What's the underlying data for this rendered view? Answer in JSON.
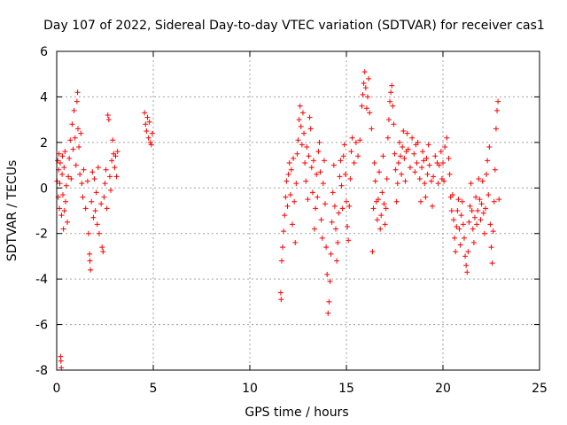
{
  "chart_data": {
    "type": "scatter",
    "title": "Day 107 of 2022, Sidereal Day-to-day VTEC variation (SDTVAR) for receiver cas1",
    "xlabel": "GPS time / hours",
    "ylabel": "SDTVAR / TECUs",
    "xlim": [
      0,
      25
    ],
    "ylim": [
      -8,
      6
    ],
    "xticks": [
      0,
      5,
      10,
      15,
      20,
      25
    ],
    "yticks": [
      -8,
      -6,
      -4,
      -2,
      0,
      2,
      4,
      6
    ],
    "grid": true,
    "marker": "+",
    "color": "#ff0000",
    "series": [
      {
        "name": "SDTVAR",
        "points": [
          [
            0.02,
            0.3
          ],
          [
            0.05,
            1.2
          ],
          [
            0.08,
            -0.4
          ],
          [
            0.1,
            0.8
          ],
          [
            0.12,
            1.5
          ],
          [
            0.14,
            -0.9
          ],
          [
            0.16,
            0.2
          ],
          [
            0.18,
            1.1
          ],
          [
            0.2,
            -7.4
          ],
          [
            0.22,
            -7.6
          ],
          [
            0.24,
            -7.9
          ],
          [
            0.25,
            -1.2
          ],
          [
            0.28,
            0.6
          ],
          [
            0.3,
            1.4
          ],
          [
            0.32,
            -0.3
          ],
          [
            0.35,
            -1.8
          ],
          [
            0.38,
            0.9
          ],
          [
            0.4,
            -1.0
          ],
          [
            0.43,
            1.6
          ],
          [
            0.46,
            -0.6
          ],
          [
            0.5,
            0.1
          ],
          [
            0.55,
            -1.5
          ],
          [
            0.6,
            0.5
          ],
          [
            0.65,
            1.3
          ],
          [
            0.7,
            2.1
          ],
          [
            0.75,
            0.4
          ],
          [
            0.8,
            2.8
          ],
          [
            0.85,
            1.7
          ],
          [
            0.9,
            3.4
          ],
          [
            0.95,
            2.2
          ],
          [
            1.0,
            1.0
          ],
          [
            1.05,
            3.8
          ],
          [
            1.08,
            4.2
          ],
          [
            1.1,
            2.6
          ],
          [
            1.15,
            1.8
          ],
          [
            1.2,
            0.6
          ],
          [
            1.25,
            2.4
          ],
          [
            1.3,
            0.2
          ],
          [
            1.35,
            -0.4
          ],
          [
            1.4,
            0.8
          ],
          [
            1.5,
            -0.9
          ],
          [
            1.6,
            0.3
          ],
          [
            1.65,
            -2.0
          ],
          [
            1.7,
            -2.9
          ],
          [
            1.72,
            -3.2
          ],
          [
            1.75,
            -3.6
          ],
          [
            1.8,
            -0.6
          ],
          [
            1.85,
            0.7
          ],
          [
            1.9,
            -1.3
          ],
          [
            1.95,
            0.4
          ],
          [
            2.0,
            -1.0
          ],
          [
            2.05,
            -0.2
          ],
          [
            2.1,
            -1.6
          ],
          [
            2.15,
            0.9
          ],
          [
            2.2,
            -2.0
          ],
          [
            2.3,
            -0.7
          ],
          [
            2.35,
            -2.6
          ],
          [
            2.4,
            -2.8
          ],
          [
            2.45,
            -0.4
          ],
          [
            2.5,
            0.2
          ],
          [
            2.55,
            0.8
          ],
          [
            2.6,
            -0.9
          ],
          [
            2.65,
            3.2
          ],
          [
            2.7,
            3.0
          ],
          [
            2.75,
            0.5
          ],
          [
            2.8,
            -0.1
          ],
          [
            2.85,
            1.2
          ],
          [
            2.9,
            2.1
          ],
          [
            2.95,
            1.5
          ],
          [
            3.0,
            0.9
          ],
          [
            3.05,
            1.4
          ],
          [
            3.1,
            0.5
          ],
          [
            3.15,
            1.6
          ],
          [
            4.55,
            3.3
          ],
          [
            4.6,
            2.8
          ],
          [
            4.65,
            2.5
          ],
          [
            4.7,
            3.1
          ],
          [
            4.75,
            2.2
          ],
          [
            4.8,
            2.9
          ],
          [
            4.85,
            2.0
          ],
          [
            4.9,
            1.9
          ],
          [
            4.95,
            2.4
          ],
          [
            11.6,
            -4.6
          ],
          [
            11.62,
            -4.9
          ],
          [
            11.65,
            -3.2
          ],
          [
            11.7,
            -2.6
          ],
          [
            11.75,
            -1.9
          ],
          [
            11.8,
            -1.2
          ],
          [
            11.85,
            -0.4
          ],
          [
            11.9,
            0.3
          ],
          [
            11.95,
            -0.8
          ],
          [
            12.0,
            0.6
          ],
          [
            12.05,
            1.1
          ],
          [
            12.1,
            -0.3
          ],
          [
            12.15,
            0.8
          ],
          [
            12.2,
            -1.6
          ],
          [
            12.25,
            1.3
          ],
          [
            12.3,
            -0.6
          ],
          [
            12.35,
            -2.4
          ],
          [
            12.4,
            0.2
          ],
          [
            12.45,
            1.5
          ],
          [
            12.5,
            2.1
          ],
          [
            12.55,
            3.0
          ],
          [
            12.6,
            3.6
          ],
          [
            12.65,
            2.7
          ],
          [
            12.7,
            1.9
          ],
          [
            12.75,
            3.3
          ],
          [
            12.8,
            2.4
          ],
          [
            12.85,
            1.1
          ],
          [
            12.9,
            0.3
          ],
          [
            12.95,
            1.8
          ],
          [
            13.0,
            -0.5
          ],
          [
            13.05,
            1.4
          ],
          [
            13.1,
            3.1
          ],
          [
            13.15,
            2.6
          ],
          [
            13.2,
            0.9
          ],
          [
            13.25,
            -0.2
          ],
          [
            13.3,
            1.2
          ],
          [
            13.35,
            -1.8
          ],
          [
            13.4,
            -0.9
          ],
          [
            13.45,
            0.6
          ],
          [
            13.5,
            -0.4
          ],
          [
            13.55,
            1.6
          ],
          [
            13.6,
            2.0
          ],
          [
            13.65,
            0.7
          ],
          [
            13.7,
            -1.4
          ],
          [
            13.75,
            -2.2
          ],
          [
            13.8,
            0.2
          ],
          [
            13.85,
            1.2
          ],
          [
            13.9,
            -0.7
          ],
          [
            13.95,
            -2.6
          ],
          [
            14.0,
            -3.8
          ],
          [
            14.05,
            -5.5
          ],
          [
            14.1,
            -5.0
          ],
          [
            14.15,
            -4.1
          ],
          [
            14.2,
            -2.9
          ],
          [
            14.25,
            -1.5
          ],
          [
            14.3,
            -0.2
          ],
          [
            14.35,
            1.0
          ],
          [
            14.4,
            -0.8
          ],
          [
            14.45,
            -1.8
          ],
          [
            14.5,
            -3.2
          ],
          [
            14.55,
            -2.4
          ],
          [
            14.6,
            -1.1
          ],
          [
            14.65,
            0.5
          ],
          [
            14.7,
            1.2
          ],
          [
            14.75,
            0.1
          ],
          [
            14.8,
            -0.9
          ],
          [
            14.85,
            1.4
          ],
          [
            14.9,
            1.9
          ],
          [
            14.95,
            0.6
          ],
          [
            15.0,
            -0.6
          ],
          [
            15.05,
            -1.7
          ],
          [
            15.1,
            -2.3
          ],
          [
            15.15,
            -0.8
          ],
          [
            15.2,
            0.4
          ],
          [
            15.25,
            1.6
          ],
          [
            15.3,
            2.2
          ],
          [
            15.4,
            1.1
          ],
          [
            15.5,
            2.0
          ],
          [
            15.6,
            1.4
          ],
          [
            15.7,
            2.1
          ],
          [
            15.8,
            3.6
          ],
          [
            15.85,
            4.1
          ],
          [
            15.9,
            4.6
          ],
          [
            15.95,
            5.1
          ],
          [
            16.0,
            4.4
          ],
          [
            16.05,
            3.5
          ],
          [
            16.1,
            4.0
          ],
          [
            16.15,
            4.8
          ],
          [
            16.2,
            3.3
          ],
          [
            16.3,
            2.6
          ],
          [
            16.35,
            -2.8
          ],
          [
            16.4,
            -0.9
          ],
          [
            16.45,
            1.1
          ],
          [
            16.5,
            0.3
          ],
          [
            16.55,
            -0.6
          ],
          [
            16.6,
            -1.4
          ],
          [
            16.65,
            -0.5
          ],
          [
            16.7,
            0.7
          ],
          [
            16.75,
            -1.8
          ],
          [
            16.8,
            -1.2
          ],
          [
            16.85,
            -0.2
          ],
          [
            16.9,
            1.4
          ],
          [
            16.95,
            -0.7
          ],
          [
            17.0,
            -1.6
          ],
          [
            17.05,
            -0.9
          ],
          [
            17.1,
            0.4
          ],
          [
            17.15,
            2.2
          ],
          [
            17.2,
            3.0
          ],
          [
            17.25,
            3.8
          ],
          [
            17.3,
            4.2
          ],
          [
            17.35,
            4.5
          ],
          [
            17.4,
            3.6
          ],
          [
            17.45,
            2.8
          ],
          [
            17.5,
            1.5
          ],
          [
            17.55,
            0.8
          ],
          [
            17.6,
            -0.6
          ],
          [
            17.65,
            0.2
          ],
          [
            17.7,
            1.1
          ],
          [
            17.75,
            2.0
          ],
          [
            17.8,
            1.4
          ],
          [
            17.85,
            0.6
          ],
          [
            17.9,
            1.8
          ],
          [
            17.95,
            2.5
          ],
          [
            18.0,
            1.3
          ],
          [
            18.05,
            0.3
          ],
          [
            18.1,
            1.6
          ],
          [
            18.15,
            2.4
          ],
          [
            18.2,
            1.7
          ],
          [
            18.3,
            0.9
          ],
          [
            18.4,
            2.2
          ],
          [
            18.5,
            1.5
          ],
          [
            18.55,
            0.7
          ],
          [
            18.6,
            1.9
          ],
          [
            18.65,
            1.1
          ],
          [
            18.7,
            2.0
          ],
          [
            18.8,
            0.4
          ],
          [
            18.85,
            -0.6
          ],
          [
            18.9,
            0.9
          ],
          [
            18.95,
            1.6
          ],
          [
            19.0,
            1.2
          ],
          [
            19.05,
            0.2
          ],
          [
            19.1,
            -0.4
          ],
          [
            19.15,
            1.3
          ],
          [
            19.2,
            0.6
          ],
          [
            19.25,
            1.9
          ],
          [
            19.3,
            1.0
          ],
          [
            19.4,
            0.3
          ],
          [
            19.45,
            -0.8
          ],
          [
            19.5,
            0.5
          ],
          [
            19.6,
            1.4
          ],
          [
            19.7,
            1.1
          ],
          [
            19.75,
            0.2
          ],
          [
            19.8,
            1.0
          ],
          [
            19.9,
            1.6
          ],
          [
            19.95,
            0.4
          ],
          [
            20.0,
            1.1
          ],
          [
            20.05,
            0.3
          ],
          [
            20.1,
            1.8
          ],
          [
            20.2,
            2.2
          ],
          [
            20.3,
            1.3
          ],
          [
            20.35,
            0.6
          ],
          [
            20.4,
            -0.4
          ],
          [
            20.45,
            -1.0
          ],
          [
            20.5,
            -0.3
          ],
          [
            20.55,
            -1.4
          ],
          [
            20.6,
            -2.2
          ],
          [
            20.65,
            -2.8
          ],
          [
            20.7,
            -1.7
          ],
          [
            20.75,
            -1.0
          ],
          [
            20.8,
            -0.5
          ],
          [
            20.85,
            -1.8
          ],
          [
            20.9,
            -2.5
          ],
          [
            20.95,
            -1.2
          ],
          [
            21.0,
            -0.6
          ],
          [
            21.05,
            -1.6
          ],
          [
            21.1,
            -2.2
          ],
          [
            21.15,
            -3.0
          ],
          [
            21.2,
            -3.4
          ],
          [
            21.25,
            -3.7
          ],
          [
            21.3,
            -2.8
          ],
          [
            21.35,
            -1.5
          ],
          [
            21.4,
            -0.8
          ],
          [
            21.45,
            0.2
          ],
          [
            21.5,
            -1.0
          ],
          [
            21.55,
            -1.8
          ],
          [
            21.6,
            -2.4
          ],
          [
            21.65,
            -1.3
          ],
          [
            21.7,
            -0.4
          ],
          [
            21.75,
            -1.6
          ],
          [
            21.8,
            -1.0
          ],
          [
            21.85,
            0.4
          ],
          [
            21.9,
            -0.5
          ],
          [
            21.95,
            -1.4
          ],
          [
            22.0,
            -0.7
          ],
          [
            22.05,
            0.3
          ],
          [
            22.1,
            -1.1
          ],
          [
            22.15,
            -2.0
          ],
          [
            22.2,
            -0.9
          ],
          [
            22.25,
            0.6
          ],
          [
            22.3,
            1.2
          ],
          [
            22.35,
            -0.3
          ],
          [
            22.4,
            1.8
          ],
          [
            22.45,
            -1.6
          ],
          [
            22.5,
            -2.6
          ],
          [
            22.55,
            -3.3
          ],
          [
            22.6,
            -1.9
          ],
          [
            22.65,
            -0.6
          ],
          [
            22.7,
            0.8
          ],
          [
            22.75,
            2.6
          ],
          [
            22.8,
            3.4
          ],
          [
            22.85,
            3.8
          ],
          [
            22.9,
            -0.5
          ]
        ]
      }
    ]
  }
}
